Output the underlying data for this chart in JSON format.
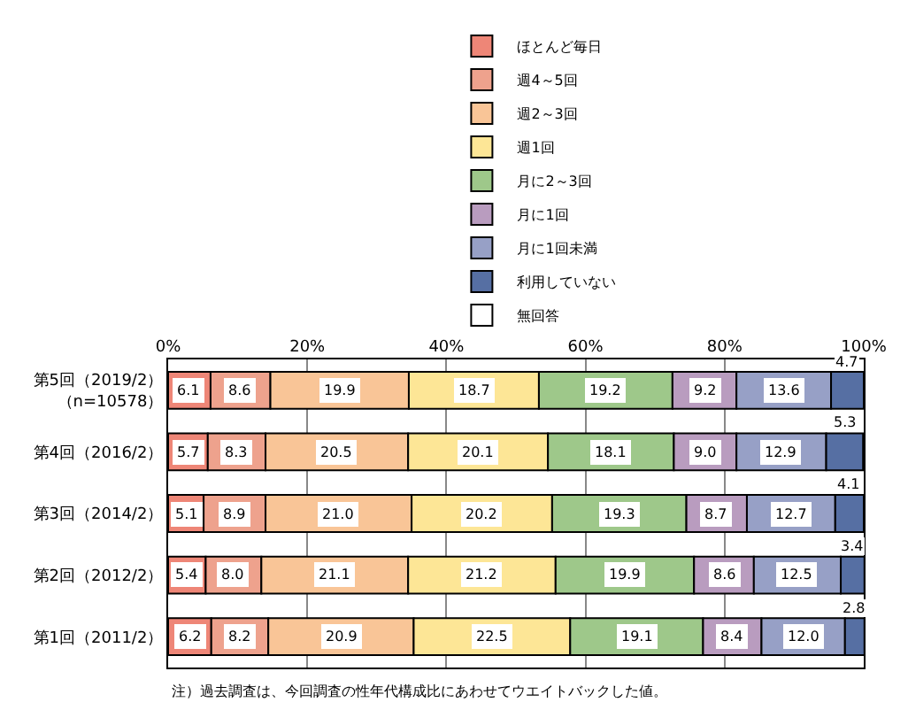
{
  "chart_data": {
    "type": "bar",
    "orientation": "horizontal",
    "stacked": true,
    "categories": [
      "第5回（2019/2）（n=10578）",
      "第4回（2016/2）",
      "第3回（2014/2）",
      "第2回（2012/2）",
      "第1回（2011/2）"
    ],
    "series": [
      {
        "name": "ほとんど毎日",
        "color": "#ee8677",
        "values": [
          6.1,
          5.7,
          5.1,
          5.4,
          6.2
        ],
        "value_labels": [
          "6.1",
          "5.7",
          "5.1",
          "5.4",
          "6.2"
        ]
      },
      {
        "name": "週4～5回",
        "color": "#eea28d",
        "values": [
          8.6,
          8.3,
          8.9,
          8.0,
          8.2
        ],
        "value_labels": [
          "8.6",
          "8.3",
          "8.9",
          "8.0",
          "8.2"
        ]
      },
      {
        "name": "週2～3回",
        "color": "#f9c597",
        "values": [
          19.9,
          20.5,
          21.0,
          21.1,
          20.9
        ],
        "value_labels": [
          "19.9",
          "20.5",
          "21.0",
          "21.1",
          "20.9"
        ]
      },
      {
        "name": "週1回",
        "color": "#fde696",
        "values": [
          18.7,
          20.1,
          20.2,
          21.2,
          22.5
        ],
        "value_labels": [
          "18.7",
          "20.1",
          "20.2",
          "21.2",
          "22.5"
        ]
      },
      {
        "name": "月に2～3回",
        "color": "#9ec88a",
        "values": [
          19.2,
          18.1,
          19.3,
          19.9,
          19.1
        ],
        "value_labels": [
          "19.2",
          "18.1",
          "19.3",
          "19.9",
          "19.1"
        ]
      },
      {
        "name": "月に1回",
        "color": "#b99cbf",
        "values": [
          9.2,
          9.0,
          8.7,
          8.6,
          8.4
        ],
        "value_labels": [
          "9.2",
          "9.0",
          "8.7",
          "8.6",
          "8.4"
        ]
      },
      {
        "name": "月に1回未満",
        "color": "#97a0c6",
        "values": [
          13.6,
          12.9,
          12.7,
          12.5,
          12.0
        ],
        "value_labels": [
          "13.6",
          "12.9",
          "12.7",
          "12.5",
          "12.0"
        ]
      },
      {
        "name": "利用していない",
        "color": "#566fa3",
        "values": [
          4.7,
          5.3,
          4.1,
          3.4,
          2.8
        ],
        "value_labels": [
          "4.7",
          "5.3",
          "4.1",
          "3.4",
          "2.8"
        ]
      },
      {
        "name": "無回答",
        "color": "#ffffff",
        "values": [
          0,
          0,
          0,
          0,
          0
        ]
      }
    ],
    "xlim": [
      0,
      100
    ],
    "xticks": [
      {
        "value": 0,
        "label": "0%"
      },
      {
        "value": 20,
        "label": "20%"
      },
      {
        "value": 40,
        "label": "40%"
      },
      {
        "value": 60,
        "label": "60%"
      },
      {
        "value": 80,
        "label": "80%"
      },
      {
        "value": 100,
        "label": "100%"
      }
    ],
    "grid": "x",
    "legend": "top",
    "annotations": [
      "注）過去調査は、今回調査の性年代構成比にあわせてウエイトバックした値。"
    ]
  }
}
